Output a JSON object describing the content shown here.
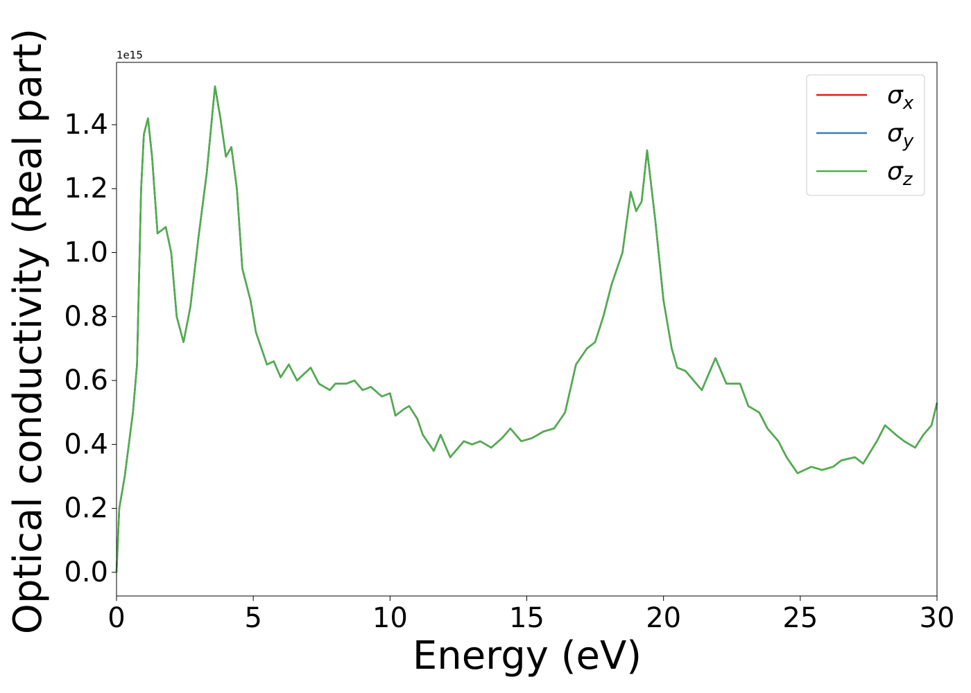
{
  "chart_data": {
    "type": "line",
    "xlabel": "Energy (eV)",
    "ylabel": "Optical conductivity (Real part)",
    "offset_label": "1e15",
    "xlim": [
      0,
      30
    ],
    "ylim": [
      -0.074,
      1.595
    ],
    "xticks": [
      0,
      5,
      10,
      15,
      20,
      25,
      30
    ],
    "yticks": [
      {
        "value": 0,
        "label": "0.0"
      },
      0.2,
      0.4,
      0.6,
      0.8,
      {
        "value": 1,
        "label": "1.0"
      },
      1.2,
      1.4
    ],
    "grid": false,
    "legend_loc": "upper right",
    "x": [
      0,
      0.1,
      0.3,
      0.6,
      0.75,
      0.9,
      1.0,
      1.15,
      1.3,
      1.5,
      1.8,
      2.0,
      2.2,
      2.45,
      2.7,
      3.0,
      3.3,
      3.6,
      3.8,
      4.0,
      4.2,
      4.4,
      4.6,
      4.9,
      5.1,
      5.3,
      5.5,
      5.75,
      6.0,
      6.3,
      6.6,
      7.1,
      7.4,
      7.8,
      8.0,
      8.4,
      8.7,
      9.0,
      9.3,
      9.7,
      10.0,
      10.2,
      10.5,
      10.7,
      11.0,
      11.2,
      11.6,
      11.85,
      12.2,
      12.7,
      13.0,
      13.3,
      13.7,
      14.1,
      14.4,
      14.8,
      15.2,
      15.6,
      16.0,
      16.4,
      16.8,
      17.2,
      17.5,
      17.8,
      18.1,
      18.5,
      18.8,
      19.0,
      19.2,
      19.4,
      19.7,
      20.0,
      20.3,
      20.5,
      20.8,
      21.1,
      21.4,
      21.9,
      22.3,
      22.8,
      23.1,
      23.5,
      23.8,
      24.2,
      24.5,
      24.9,
      25.4,
      25.8,
      26.2,
      26.5,
      27.0,
      27.3,
      27.8,
      28.1,
      28.5,
      28.8,
      29.2,
      29.5,
      29.8,
      30.0
    ],
    "series": [
      {
        "name": "σx",
        "color": "#e41a1c",
        "values": [
          0.0,
          0.2,
          0.3,
          0.5,
          0.65,
          1.2,
          1.37,
          1.42,
          1.3,
          1.06,
          1.08,
          1.0,
          0.8,
          0.72,
          0.83,
          1.05,
          1.25,
          1.52,
          1.42,
          1.3,
          1.33,
          1.2,
          0.95,
          0.85,
          0.75,
          0.7,
          0.65,
          0.66,
          0.61,
          0.65,
          0.6,
          0.64,
          0.59,
          0.57,
          0.59,
          0.59,
          0.6,
          0.57,
          0.58,
          0.55,
          0.56,
          0.49,
          0.51,
          0.52,
          0.48,
          0.43,
          0.38,
          0.43,
          0.36,
          0.41,
          0.4,
          0.41,
          0.39,
          0.42,
          0.45,
          0.41,
          0.42,
          0.44,
          0.45,
          0.5,
          0.65,
          0.7,
          0.72,
          0.8,
          0.9,
          1.0,
          1.19,
          1.13,
          1.16,
          1.32,
          1.1,
          0.85,
          0.7,
          0.64,
          0.63,
          0.6,
          0.57,
          0.67,
          0.59,
          0.59,
          0.52,
          0.5,
          0.45,
          0.41,
          0.36,
          0.31,
          0.33,
          0.32,
          0.33,
          0.35,
          0.36,
          0.34,
          0.41,
          0.46,
          0.43,
          0.41,
          0.39,
          0.43,
          0.46,
          0.53
        ]
      },
      {
        "name": "σy",
        "color": "#377eb8",
        "values": [
          0.0,
          0.2,
          0.3,
          0.5,
          0.65,
          1.2,
          1.37,
          1.42,
          1.3,
          1.06,
          1.08,
          1.0,
          0.8,
          0.72,
          0.83,
          1.05,
          1.25,
          1.52,
          1.42,
          1.3,
          1.33,
          1.2,
          0.95,
          0.85,
          0.75,
          0.7,
          0.65,
          0.66,
          0.61,
          0.65,
          0.6,
          0.64,
          0.59,
          0.57,
          0.59,
          0.59,
          0.6,
          0.57,
          0.58,
          0.55,
          0.56,
          0.49,
          0.51,
          0.52,
          0.48,
          0.43,
          0.38,
          0.43,
          0.36,
          0.41,
          0.4,
          0.41,
          0.39,
          0.42,
          0.45,
          0.41,
          0.42,
          0.44,
          0.45,
          0.5,
          0.65,
          0.7,
          0.72,
          0.8,
          0.9,
          1.0,
          1.19,
          1.13,
          1.16,
          1.32,
          1.1,
          0.85,
          0.7,
          0.64,
          0.63,
          0.6,
          0.57,
          0.67,
          0.59,
          0.59,
          0.52,
          0.5,
          0.45,
          0.41,
          0.36,
          0.31,
          0.33,
          0.32,
          0.33,
          0.35,
          0.36,
          0.34,
          0.41,
          0.46,
          0.43,
          0.41,
          0.39,
          0.43,
          0.46,
          0.53
        ]
      },
      {
        "name": "σz",
        "color": "#4daf4a",
        "values": [
          0.0,
          0.2,
          0.3,
          0.5,
          0.65,
          1.2,
          1.37,
          1.42,
          1.3,
          1.06,
          1.08,
          1.0,
          0.8,
          0.72,
          0.83,
          1.05,
          1.25,
          1.52,
          1.42,
          1.3,
          1.33,
          1.2,
          0.95,
          0.85,
          0.75,
          0.7,
          0.65,
          0.66,
          0.61,
          0.65,
          0.6,
          0.64,
          0.59,
          0.57,
          0.59,
          0.59,
          0.6,
          0.57,
          0.58,
          0.55,
          0.56,
          0.49,
          0.51,
          0.52,
          0.48,
          0.43,
          0.38,
          0.43,
          0.36,
          0.41,
          0.4,
          0.41,
          0.39,
          0.42,
          0.45,
          0.41,
          0.42,
          0.44,
          0.45,
          0.5,
          0.65,
          0.7,
          0.72,
          0.8,
          0.9,
          1.0,
          1.19,
          1.13,
          1.16,
          1.32,
          1.1,
          0.85,
          0.7,
          0.64,
          0.63,
          0.6,
          0.57,
          0.67,
          0.59,
          0.59,
          0.52,
          0.5,
          0.45,
          0.41,
          0.36,
          0.31,
          0.33,
          0.32,
          0.33,
          0.35,
          0.36,
          0.34,
          0.41,
          0.46,
          0.43,
          0.41,
          0.39,
          0.43,
          0.46,
          0.53
        ]
      }
    ]
  }
}
